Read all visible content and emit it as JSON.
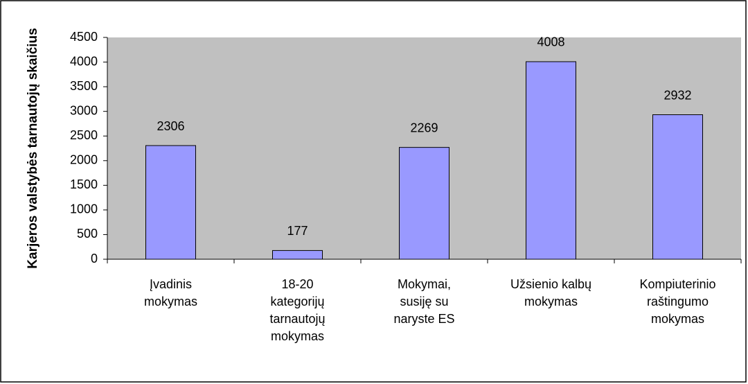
{
  "chart_data": {
    "type": "bar",
    "y_label": "Karjeros valstybės tarnautojų skaičius",
    "categories": [
      [
        "Įvadinis",
        "mokymas"
      ],
      [
        "18-20",
        "kategorijų",
        "tarnautojų",
        "mokymas"
      ],
      [
        "Mokymai,",
        "susiję su",
        "naryste ES"
      ],
      [
        "Užsienio kalbų",
        "mokymas"
      ],
      [
        "Kompiuterinio",
        "raštingumo",
        "mokymas"
      ]
    ],
    "values": [
      2306,
      177,
      2269,
      4008,
      2932
    ],
    "color": "#9999ff",
    "ylim": [
      0,
      4500
    ],
    "yticks": [
      0,
      500,
      1000,
      1500,
      2000,
      2500,
      3000,
      3500,
      4000,
      4500
    ]
  }
}
